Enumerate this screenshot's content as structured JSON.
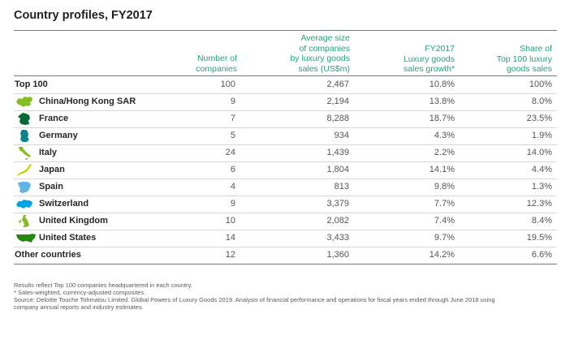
{
  "title": "Country profiles, FY2017",
  "headers": {
    "companies": [
      "Number of",
      "companies"
    ],
    "avg_size": [
      "Average size",
      "of companies",
      "by luxury goods",
      "sales (US$m)"
    ],
    "growth": [
      "FY2017",
      "Luxury goods",
      "sales growth*"
    ],
    "share": [
      "Share of",
      "Top 100 luxury",
      "goods sales"
    ]
  },
  "rows": [
    {
      "name": "Top 100",
      "companies": "100",
      "avg": "2,467",
      "growth": "10.8%",
      "share": "100%"
    },
    {
      "name": "China/Hong Kong SAR",
      "companies": "9",
      "avg": "2,194",
      "growth": "13.8%",
      "share": "8.0%",
      "icon": "china-map-icon",
      "color": "#86bc25"
    },
    {
      "name": "France",
      "companies": "7",
      "avg": "8,288",
      "growth": "18.7%",
      "share": "23.5%",
      "icon": "france-map-icon",
      "color": "#046a38"
    },
    {
      "name": "Germany",
      "companies": "5",
      "avg": "934",
      "growth": "4.3%",
      "share": "1.9%",
      "icon": "germany-map-icon",
      "color": "#0d8390"
    },
    {
      "name": "Italy",
      "companies": "24",
      "avg": "1,439",
      "growth": "2.2%",
      "share": "14.0%",
      "icon": "italy-map-icon",
      "color": "#86bc25"
    },
    {
      "name": "Japan",
      "companies": "6",
      "avg": "1,804",
      "growth": "14.1%",
      "share": "4.4%",
      "icon": "japan-map-icon",
      "color": "#c4d600"
    },
    {
      "name": "Spain",
      "companies": "4",
      "avg": "813",
      "growth": "9.8%",
      "share": "1.3%",
      "icon": "spain-map-icon",
      "color": "#62b5e5"
    },
    {
      "name": "Switzerland",
      "companies": "9",
      "avg": "3,379",
      "growth": "7.7%",
      "share": "12.3%",
      "icon": "switzerland-map-icon",
      "color": "#00a3e0"
    },
    {
      "name": "United Kingdom",
      "companies": "10",
      "avg": "2,082",
      "growth": "7.4%",
      "share": "8.4%",
      "icon": "uk-map-icon",
      "color": "#86bc25"
    },
    {
      "name": "United States",
      "companies": "14",
      "avg": "3,433",
      "growth": "9.7%",
      "share": "19.5%",
      "icon": "usa-map-icon",
      "color": "#26890d"
    },
    {
      "name": "Other countries",
      "companies": "12",
      "avg": "1,360",
      "growth": "14.2%",
      "share": "6.6%"
    }
  ],
  "notes": [
    "Results reflect Top 100 companies headquartered in each country.",
    "* Sales-weighted, currency-adjusted composites.",
    "Source: Deloitte Touche Tohmatsu Limited. Global Powers of Luxury Goods 2019. Analysis of financial performance and operations for fiscal years ended through June 2018 using",
    "company annual reports and industry estimates."
  ]
}
